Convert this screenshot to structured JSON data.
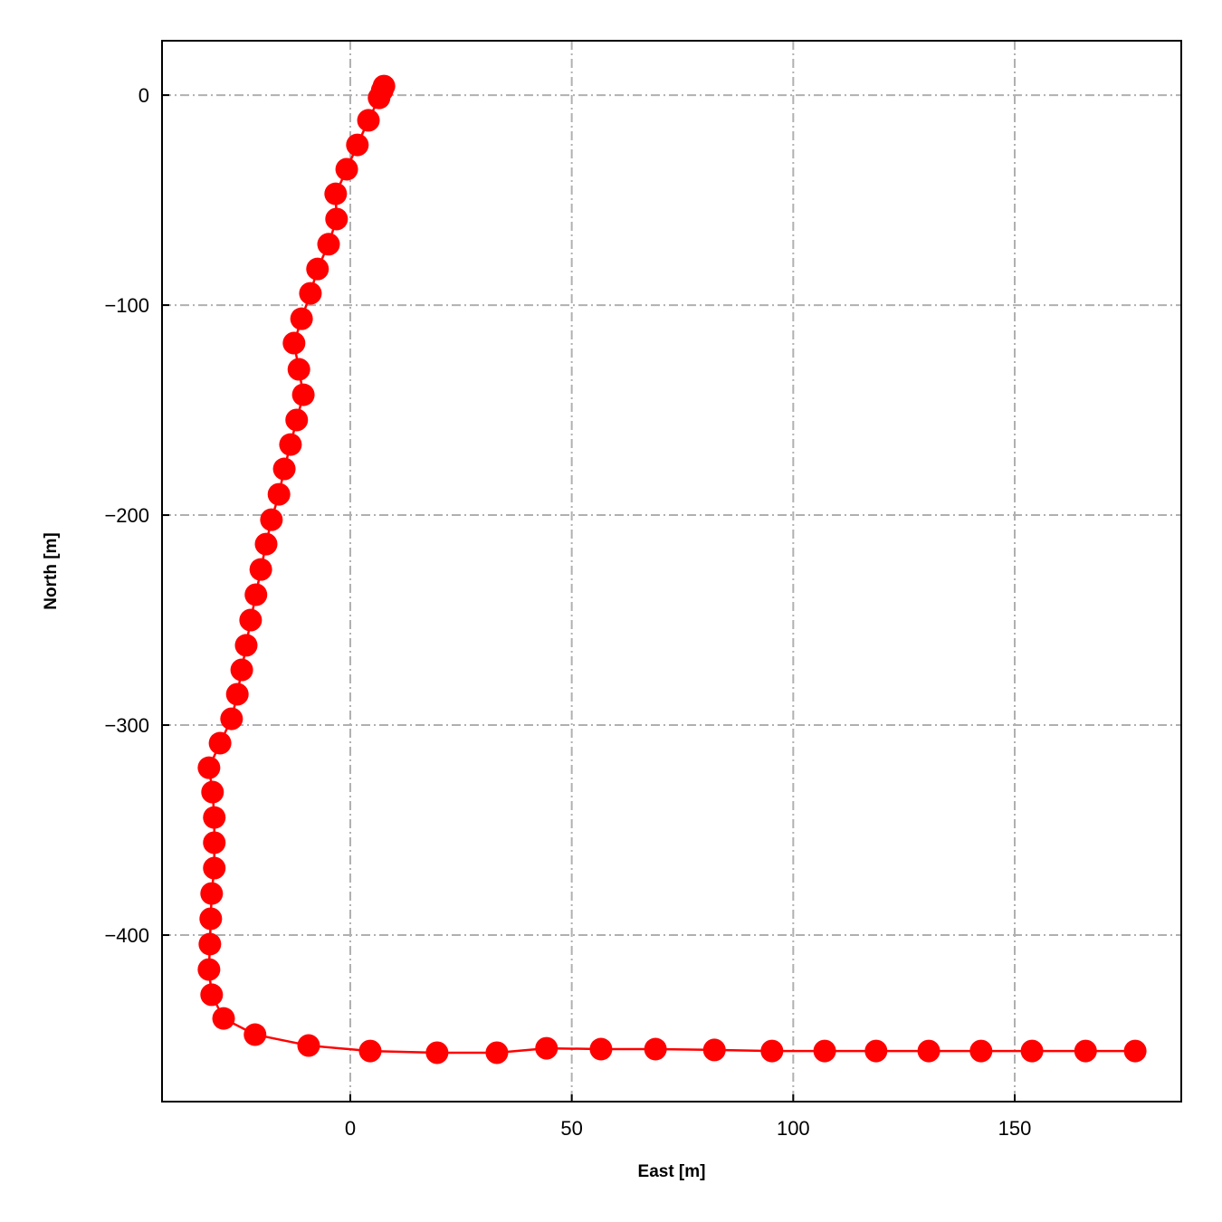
{
  "chart_data": {
    "type": "line",
    "title": "",
    "xlabel": "East [m]",
    "ylabel": "North [m]",
    "xlim": [
      -42.5,
      187.6
    ],
    "ylim": [
      -479.3,
      25.9
    ],
    "xticks": [
      0,
      50,
      100,
      150
    ],
    "yticks": [
      0,
      -100,
      -200,
      -300,
      -400
    ],
    "xtick_labels": [
      "0",
      "50",
      "100",
      "150"
    ],
    "ytick_labels": [
      "0",
      "−100",
      "−200",
      "−300",
      "−400"
    ],
    "grid": true,
    "grid_style": "dash-dot",
    "colors": {
      "series": "#ff0000",
      "grid": "#b0b0b0"
    },
    "series": [
      {
        "marker": "circle",
        "x": [
          7.6,
          7.2,
          6.5,
          4.1,
          1.6,
          -0.8,
          -3.3,
          -3.1,
          -4.9,
          -7.4,
          -9.0,
          -11.0,
          -12.7,
          -11.6,
          -10.6,
          -12.1,
          -13.5,
          -14.9,
          -16.1,
          -17.8,
          -19.0,
          -20.2,
          -21.3,
          -22.5,
          -23.5,
          -24.5,
          -25.5,
          -26.8,
          -29.4,
          -31.9,
          -31.1,
          -30.7,
          -30.7,
          -30.7,
          -31.3,
          -31.5,
          -31.7,
          -31.9,
          -31.3,
          -28.6,
          -21.5,
          -9.4,
          4.5,
          19.6,
          33.1,
          44.3,
          56.6,
          68.9,
          82.2,
          95.2,
          107.1,
          118.7,
          130.6,
          142.4,
          153.9,
          166.0,
          177.2
        ],
        "y": [
          4.3,
          2.2,
          -1.3,
          -12.0,
          -23.7,
          -35.3,
          -47.0,
          -59.0,
          -71.0,
          -82.8,
          -94.4,
          -106.5,
          -118.1,
          -130.6,
          -142.7,
          -154.7,
          -166.4,
          -178.0,
          -190.1,
          -202.2,
          -213.8,
          -225.9,
          -237.9,
          -250.0,
          -262.0,
          -273.7,
          -285.3,
          -297.0,
          -308.6,
          -320.3,
          -331.9,
          -344.0,
          -356.0,
          -368.1,
          -380.2,
          -392.2,
          -404.3,
          -416.4,
          -428.4,
          -439.7,
          -447.4,
          -452.6,
          -455.2,
          -456.0,
          -456.0,
          -453.9,
          -454.3,
          -454.3,
          -454.7,
          -455.2,
          -455.2,
          -455.2,
          -455.2,
          -455.2,
          -455.2,
          -455.2,
          -455.2
        ]
      }
    ]
  }
}
